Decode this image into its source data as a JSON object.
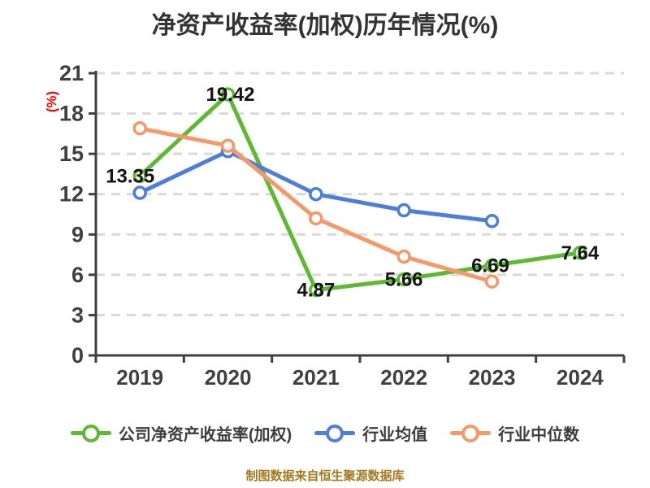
{
  "chart_data": {
    "type": "line",
    "title": "净资产收益率(加权)历年情况(%)",
    "ylabel": "(%)",
    "xlabel": "",
    "categories": [
      "2019",
      "2020",
      "2021",
      "2022",
      "2023",
      "2024"
    ],
    "y_ticks": [
      0,
      3,
      6,
      9,
      12,
      15,
      18,
      21
    ],
    "ylim": [
      0,
      21
    ],
    "grid": "horizontal-dashed",
    "legend_position": "bottom",
    "axis_color": "#3f3f3f",
    "grid_color": "#d9d9d9",
    "point_label_color": "#141414",
    "series": [
      {
        "name": "公司净资产收益率(加权)",
        "color": "#5eb832",
        "values": [
          13.35,
          19.42,
          4.87,
          5.66,
          6.69,
          7.64
        ],
        "point_labels": [
          "13.35",
          "19.42",
          "4.87",
          "5.66",
          "6.69",
          "7.64"
        ]
      },
      {
        "name": "行业均值",
        "color": "#4d7edb",
        "values": [
          12.1,
          15.2,
          12.0,
          10.8,
          10.0,
          null
        ],
        "point_labels": null
      },
      {
        "name": "行业中位数",
        "color": "#f3996a",
        "values": [
          16.9,
          15.6,
          10.2,
          7.35,
          5.5,
          null
        ],
        "point_labels": null
      }
    ],
    "caption": "制图数据来自恒生聚源数据库"
  }
}
